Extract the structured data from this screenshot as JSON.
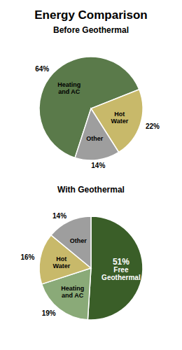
{
  "title": "Energy Comparison",
  "chart_data": [
    {
      "type": "pie",
      "title": "Before Geothermal",
      "categories": [
        "Heating\nand AC",
        "Hot\nWater",
        "Other"
      ],
      "values": [
        64,
        22,
        14
      ],
      "value_labels": [
        "64%",
        "22%",
        "14%"
      ],
      "colors": [
        "#5a7a4a",
        "#c8b96a",
        "#9e9e9e"
      ],
      "data_labels": true
    },
    {
      "type": "pie",
      "title": "With Geothermal",
      "categories": [
        "Free\nGeothermal",
        "Heating\nand AC",
        "Hot\nWater",
        "Other"
      ],
      "values": [
        51,
        19,
        16,
        14
      ],
      "value_labels": [
        "51%",
        "19%",
        "16%",
        "14%"
      ],
      "colors": [
        "#3a5e28",
        "#8aaa78",
        "#c8b96a",
        "#9e9e9e"
      ],
      "data_labels": true
    }
  ]
}
